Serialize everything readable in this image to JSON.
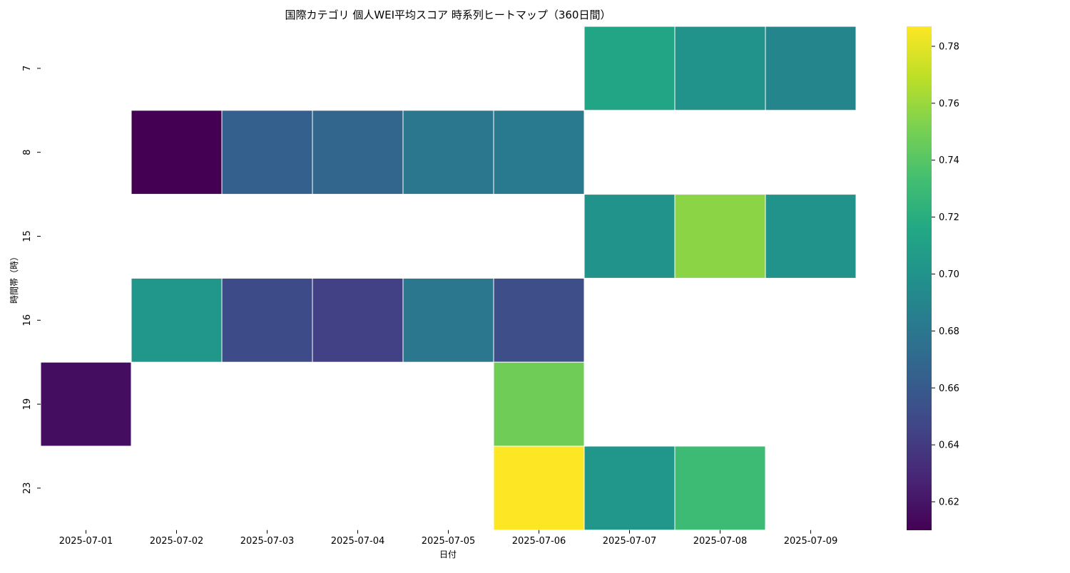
{
  "chart_data": {
    "type": "heatmap",
    "title": "国際カテゴリ 個人WEI平均スコア 時系列ヒートマップ（360日間）",
    "xlabel": "日付",
    "ylabel": "時間帯（時）",
    "x": [
      "2025-07-01",
      "2025-07-02",
      "2025-07-03",
      "2025-07-04",
      "2025-07-05",
      "2025-07-06",
      "2025-07-07",
      "2025-07-08",
      "2025-07-09"
    ],
    "y": [
      "7",
      "8",
      "15",
      "16",
      "19",
      "23"
    ],
    "values": [
      [
        null,
        null,
        null,
        null,
        null,
        null,
        0.714,
        0.7,
        0.69
      ],
      [
        null,
        0.61,
        0.664,
        0.668,
        0.68,
        0.682,
        null,
        null,
        null
      ],
      [
        null,
        null,
        null,
        null,
        null,
        null,
        0.7,
        0.756,
        0.7
      ],
      [
        null,
        0.702,
        0.65,
        0.644,
        0.68,
        0.652,
        null,
        null,
        null
      ],
      [
        0.616,
        null,
        null,
        null,
        null,
        0.748,
        null,
        null,
        null
      ],
      [
        null,
        null,
        null,
        null,
        null,
        0.787,
        0.702,
        0.73,
        null
      ]
    ],
    "colorbar": {
      "colormap": "viridis",
      "range": [
        0.61,
        0.787
      ],
      "ticks": [
        "0.62",
        "0.64",
        "0.66",
        "0.68",
        "0.70",
        "0.72",
        "0.74",
        "0.76",
        "0.78"
      ]
    },
    "grid": false
  }
}
